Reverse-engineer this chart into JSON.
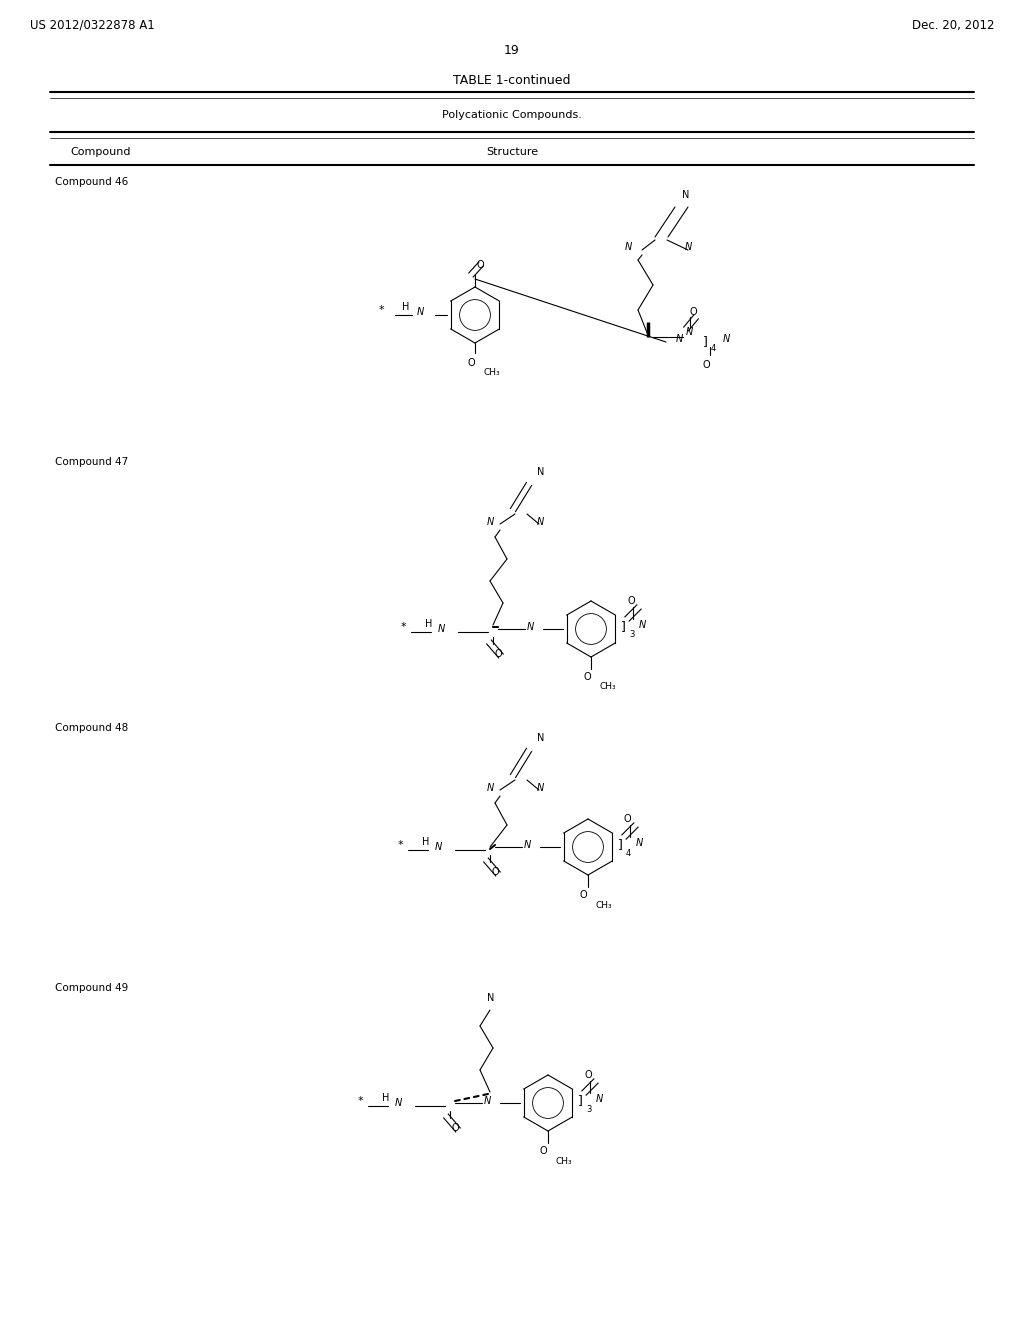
{
  "title_left": "US 2012/0322878 A1",
  "title_right": "Dec. 20, 2012",
  "page_number": "19",
  "table_title": "TABLE 1-continued",
  "table_subtitle": "Polycationic Compounds.",
  "col1_header": "Compound",
  "col2_header": "Structure",
  "compounds": [
    "Compound 46",
    "Compound 47",
    "Compound 48",
    "Compound 49"
  ],
  "background": "#ffffff",
  "text_color": "#000000",
  "line_color": "#000000"
}
